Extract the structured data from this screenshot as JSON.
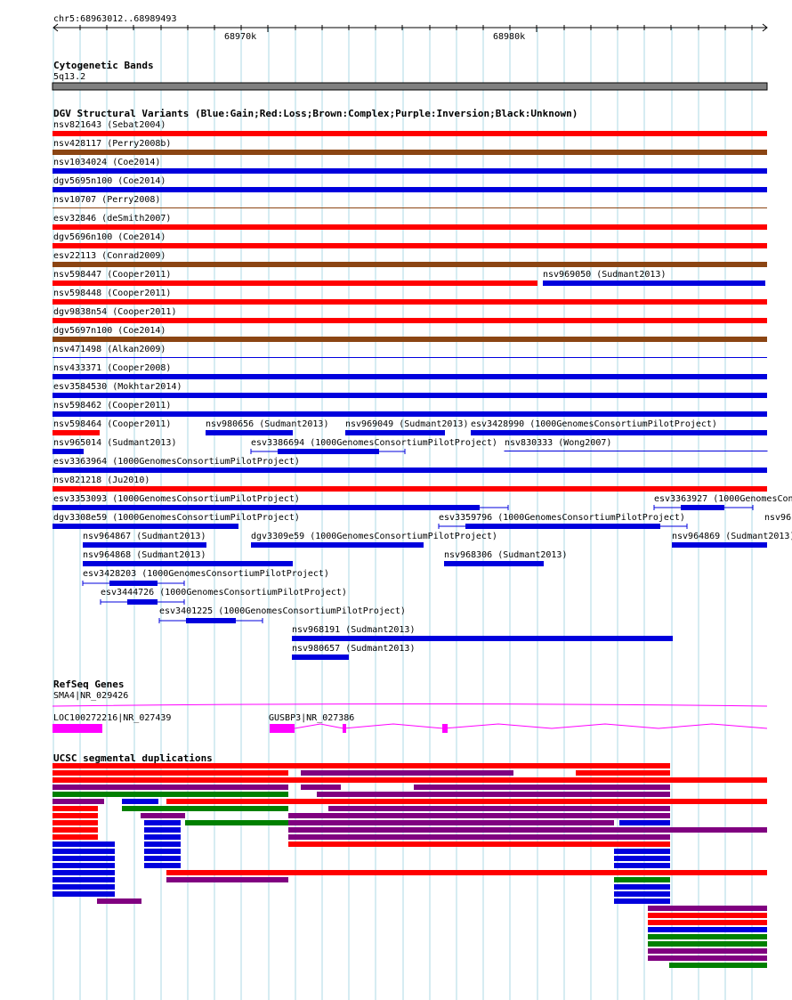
{
  "header": {
    "location": "chr5:68963012..68989493",
    "ticks": [
      "68970k",
      "68980k"
    ]
  },
  "cytoband": {
    "title": "Cytogenetic Bands",
    "band_label": "5q13.2"
  },
  "dgv": {
    "title": "DGV Structural Variants (Blue:Gain;Red:Loss;Brown:Complex;Purple:Inversion;Black:Unknown)",
    "features": [
      "nsv821643 (Sebat2004)",
      "nsv428117 (Perry2008b)",
      "nsv1034024 (Coe2014)",
      "dgv5695n100 (Coe2014)",
      "nsv10707 (Perry2008)",
      "esv32846 (deSmith2007)",
      "dgv5696n100 (Coe2014)",
      "esv22113 (Conrad2009)",
      "nsv598447 (Cooper2011)",
      "nsv969050 (Sudmant2013)",
      "nsv598448 (Cooper2011)",
      "dgv9838n54 (Cooper2011)",
      "dgv5697n100 (Coe2014)",
      "nsv471498 (Alkan2009)",
      "nsv433371 (Cooper2008)",
      "esv3584530 (Mokhtar2014)",
      "nsv598462 (Cooper2011)",
      "nsv598464 (Cooper2011)",
      "nsv980656 (Sudmant2013)",
      "nsv969049 (Sudmant2013)",
      "esv3428990 (1000GenomesConsortiumPilotProject)",
      "nsv965014 (Sudmant2013)",
      "esv3386694 (1000GenomesConsortiumPilotProject)",
      "nsv830333 (Wong2007)",
      "esv3363964 (1000GenomesConsortiumPilotProject)",
      "nsv821218 (Ju2010)",
      "esv3353093 (1000GenomesConsortiumPilotProject)",
      "esv3363927 (1000GenomesCon",
      "dgv3308e59 (1000GenomesConsortiumPilotProject)",
      "esv3359796 (1000GenomesConsortiumPilotProject)",
      "nsv96",
      "nsv964867 (Sudmant2013)",
      "dgv3309e59 (1000GenomesConsortiumPilotProject)",
      "nsv964869 (Sudmant2013)",
      "nsv964868 (Sudmant2013)",
      "nsv968306 (Sudmant2013)",
      "esv3428203 (1000GenomesConsortiumPilotProject)",
      "esv3444726 (1000GenomesConsortiumPilotProject)",
      "esv3401225 (1000GenomesConsortiumPilotProject)",
      "nsv968191 (Sudmant2013)",
      "nsv980657 (Sudmant2013)"
    ]
  },
  "refseq": {
    "title": "RefSeq Genes",
    "genes": [
      "SMA4|NR_029426",
      "LOC100272216|NR_027439",
      "GUSBP3|NR_027386"
    ]
  },
  "segdups": {
    "title": "UCSC segmental duplications"
  },
  "colors": {
    "gain": "#0000dd",
    "loss": "#ff0000",
    "complex": "#8b4513",
    "inversion": "#800080",
    "gene": "#ff00ff",
    "segdup_green": "#008000",
    "grid": "#add8e6",
    "cytoband": "#808080"
  }
}
